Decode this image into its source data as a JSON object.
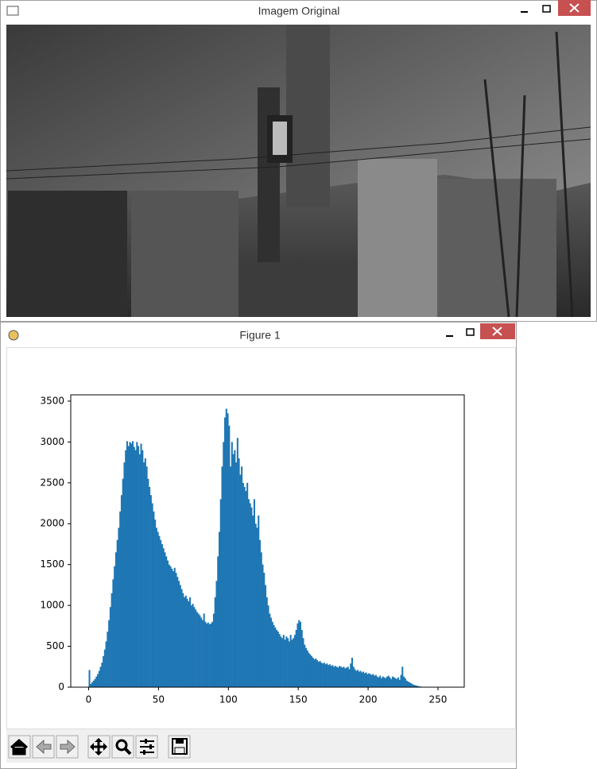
{
  "windows": [
    {
      "title": "Imagem Original"
    },
    {
      "title": "Figure 1"
    }
  ],
  "chart_data": {
    "type": "histogram",
    "color": "#1f77b4",
    "bins": [
      0,
      1,
      2,
      3,
      4,
      5,
      6,
      7,
      8,
      9,
      10,
      11,
      12,
      13,
      14,
      15,
      16,
      17,
      18,
      19,
      20,
      21,
      22,
      23,
      24,
      25,
      26,
      27,
      28,
      29,
      30,
      31,
      32,
      33,
      34,
      35,
      36,
      37,
      38,
      39,
      40,
      41,
      42,
      43,
      44,
      45,
      46,
      47,
      48,
      49,
      50,
      51,
      52,
      53,
      54,
      55,
      56,
      57,
      58,
      59,
      60,
      61,
      62,
      63,
      64,
      65,
      66,
      67,
      68,
      69,
      70,
      71,
      72,
      73,
      74,
      75,
      76,
      77,
      78,
      79,
      80,
      81,
      82,
      83,
      84,
      85,
      86,
      87,
      88,
      89,
      90,
      91,
      92,
      93,
      94,
      95,
      96,
      97,
      98,
      99,
      100,
      101,
      102,
      103,
      104,
      105,
      106,
      107,
      108,
      109,
      110,
      111,
      112,
      113,
      114,
      115,
      116,
      117,
      118,
      119,
      120,
      121,
      122,
      123,
      124,
      125,
      126,
      127,
      128,
      129,
      130,
      131,
      132,
      133,
      134,
      135,
      136,
      137,
      138,
      139,
      140,
      141,
      142,
      143,
      144,
      145,
      146,
      147,
      148,
      149,
      150,
      151,
      152,
      153,
      154,
      155,
      156,
      157,
      158,
      159,
      160,
      161,
      162,
      163,
      164,
      165,
      166,
      167,
      168,
      169,
      170,
      171,
      172,
      173,
      174,
      175,
      176,
      177,
      178,
      179,
      180,
      181,
      182,
      183,
      184,
      185,
      186,
      187,
      188,
      189,
      190,
      191,
      192,
      193,
      194,
      195,
      196,
      197,
      198,
      199,
      200,
      201,
      202,
      203,
      204,
      205,
      206,
      207,
      208,
      209,
      210,
      211,
      212,
      213,
      214,
      215,
      216,
      217,
      218,
      219,
      220,
      221,
      222,
      223,
      224,
      225,
      226,
      227,
      228,
      229,
      230,
      231,
      232,
      233,
      234,
      235,
      236,
      237,
      238,
      239,
      240,
      241,
      242,
      243,
      244,
      245,
      246,
      247,
      248,
      249,
      250,
      251,
      252,
      253,
      254,
      255,
      256
    ],
    "values": [
      210,
      40,
      60,
      80,
      100,
      130,
      160,
      200,
      250,
      300,
      380,
      460,
      560,
      680,
      820,
      980,
      1150,
      1320,
      1480,
      1650,
      1800,
      1950,
      2150,
      2350,
      2550,
      2750,
      2900,
      3010,
      2950,
      3000,
      2980,
      3010,
      2940,
      2900,
      3000,
      2950,
      2850,
      2980,
      2900,
      2750,
      2800,
      2700,
      2550,
      2450,
      2350,
      2250,
      2150,
      2050,
      1950,
      1900,
      1850,
      1800,
      1750,
      1700,
      1650,
      1600,
      1550,
      1500,
      1480,
      1450,
      1420,
      1460,
      1400,
      1350,
      1300,
      1250,
      1200,
      1150,
      1100,
      1120,
      1080,
      1050,
      1100,
      1000,
      1020,
      980,
      950,
      920,
      900,
      880,
      850,
      820,
      900,
      800,
      780,
      790,
      770,
      780,
      800,
      900,
      1100,
      1300,
      1600,
      1900,
      2300,
      2700,
      3000,
      3300,
      3407,
      3350,
      3200,
      2700,
      3000,
      2850,
      2900,
      2750,
      3050,
      2800,
      2600,
      2700,
      2500,
      2450,
      2400,
      2500,
      2300,
      2250,
      2200,
      2100,
      2300,
      2000,
      1950,
      2100,
      1800,
      1650,
      1500,
      1400,
      1250,
      1100,
      1000,
      900,
      850,
      800,
      760,
      730,
      700,
      680,
      650,
      620,
      600,
      640,
      580,
      620,
      600,
      560,
      640,
      580,
      600,
      640,
      700,
      780,
      820,
      800,
      700,
      600,
      520,
      480,
      450,
      420,
      400,
      380,
      360,
      340,
      350,
      330,
      310,
      320,
      300,
      290,
      300,
      280,
      290,
      270,
      280,
      260,
      270,
      250,
      260,
      250,
      240,
      260,
      250,
      240,
      250,
      230,
      240,
      250,
      220,
      290,
      360,
      250,
      220,
      200,
      210,
      190,
      200,
      180,
      190,
      170,
      180,
      160,
      170,
      160,
      150,
      160,
      140,
      150,
      130,
      120,
      140,
      110,
      130,
      120,
      110,
      130,
      140,
      120,
      100,
      130,
      120,
      110,
      100,
      120,
      90,
      150,
      250,
      130,
      110,
      80,
      70,
      60,
      50,
      40,
      30,
      25,
      20,
      15,
      10,
      8,
      5,
      3,
      2,
      1,
      0,
      0,
      0,
      0,
      0,
      0,
      0,
      0,
      0,
      0,
      0,
      0,
      0,
      0
    ],
    "xlim": [
      -12.8,
      268.8
    ],
    "xticks": [
      0,
      50,
      100,
      150,
      200,
      250
    ],
    "ylim": [
      0,
      3577
    ],
    "yticks": [
      0,
      500,
      1000,
      1500,
      2000,
      2500,
      3000,
      3500
    ]
  }
}
